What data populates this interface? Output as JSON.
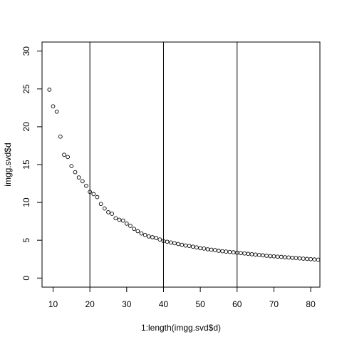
{
  "chart_data": {
    "type": "scatter",
    "title": "",
    "xlabel": "1:length(imgg.svd$d)",
    "ylabel": "imgg.svd$d",
    "xlim": [
      7,
      82.5
    ],
    "ylim": [
      -1.2,
      31.2
    ],
    "grid": false,
    "legend": "none",
    "x_ticks": [
      10,
      20,
      30,
      40,
      50,
      60,
      70,
      80
    ],
    "y_ticks": [
      0,
      5,
      10,
      15,
      20,
      25,
      30
    ],
    "x_tick_labels": [
      "10",
      "20",
      "30",
      "40",
      "50",
      "60",
      "70",
      "80"
    ],
    "y_tick_labels": [
      "0",
      "5",
      "10",
      "15",
      "20",
      "25",
      "30"
    ],
    "vlines": [
      20,
      40,
      60
    ],
    "colors": {
      "points": "#000000",
      "axes": "#000000",
      "lines": "#000000",
      "background": "#ffffff"
    },
    "points": [
      {
        "x": 9,
        "y": 24.9
      },
      {
        "x": 10,
        "y": 22.7
      },
      {
        "x": 11,
        "y": 22.0
      },
      {
        "x": 12,
        "y": 18.7
      },
      {
        "x": 13,
        "y": 16.3
      },
      {
        "x": 14,
        "y": 16.0
      },
      {
        "x": 15,
        "y": 14.8
      },
      {
        "x": 16,
        "y": 14.0
      },
      {
        "x": 17,
        "y": 13.3
      },
      {
        "x": 18,
        "y": 12.8
      },
      {
        "x": 19,
        "y": 12.2
      },
      {
        "x": 20,
        "y": 11.4
      },
      {
        "x": 21,
        "y": 11.1
      },
      {
        "x": 22,
        "y": 10.7
      },
      {
        "x": 23,
        "y": 9.8
      },
      {
        "x": 24,
        "y": 9.2
      },
      {
        "x": 25,
        "y": 8.7
      },
      {
        "x": 26,
        "y": 8.5
      },
      {
        "x": 27,
        "y": 7.9
      },
      {
        "x": 28,
        "y": 7.7
      },
      {
        "x": 29,
        "y": 7.6
      },
      {
        "x": 30,
        "y": 7.2
      },
      {
        "x": 31,
        "y": 6.9
      },
      {
        "x": 32,
        "y": 6.5
      },
      {
        "x": 33,
        "y": 6.2
      },
      {
        "x": 34,
        "y": 5.9
      },
      {
        "x": 35,
        "y": 5.7
      },
      {
        "x": 36,
        "y": 5.5
      },
      {
        "x": 37,
        "y": 5.4
      },
      {
        "x": 38,
        "y": 5.3
      },
      {
        "x": 39,
        "y": 5.1
      },
      {
        "x": 40,
        "y": 4.9
      },
      {
        "x": 41,
        "y": 4.8
      },
      {
        "x": 42,
        "y": 4.7
      },
      {
        "x": 43,
        "y": 4.6
      },
      {
        "x": 44,
        "y": 4.5
      },
      {
        "x": 45,
        "y": 4.4
      },
      {
        "x": 46,
        "y": 4.3
      },
      {
        "x": 47,
        "y": 4.25
      },
      {
        "x": 48,
        "y": 4.15
      },
      {
        "x": 49,
        "y": 4.05
      },
      {
        "x": 50,
        "y": 3.95
      },
      {
        "x": 51,
        "y": 3.9
      },
      {
        "x": 52,
        "y": 3.8
      },
      {
        "x": 53,
        "y": 3.75
      },
      {
        "x": 54,
        "y": 3.7
      },
      {
        "x": 55,
        "y": 3.6
      },
      {
        "x": 56,
        "y": 3.55
      },
      {
        "x": 57,
        "y": 3.5
      },
      {
        "x": 58,
        "y": 3.45
      },
      {
        "x": 59,
        "y": 3.4
      },
      {
        "x": 60,
        "y": 3.35
      },
      {
        "x": 61,
        "y": 3.3
      },
      {
        "x": 62,
        "y": 3.25
      },
      {
        "x": 63,
        "y": 3.2
      },
      {
        "x": 64,
        "y": 3.15
      },
      {
        "x": 65,
        "y": 3.1
      },
      {
        "x": 66,
        "y": 3.05
      },
      {
        "x": 67,
        "y": 3.0
      },
      {
        "x": 68,
        "y": 2.95
      },
      {
        "x": 69,
        "y": 2.9
      },
      {
        "x": 70,
        "y": 2.87
      },
      {
        "x": 71,
        "y": 2.83
      },
      {
        "x": 72,
        "y": 2.8
      },
      {
        "x": 73,
        "y": 2.75
      },
      {
        "x": 74,
        "y": 2.72
      },
      {
        "x": 75,
        "y": 2.68
      },
      {
        "x": 76,
        "y": 2.65
      },
      {
        "x": 77,
        "y": 2.6
      },
      {
        "x": 78,
        "y": 2.57
      },
      {
        "x": 79,
        "y": 2.53
      },
      {
        "x": 80,
        "y": 2.5
      },
      {
        "x": 81,
        "y": 2.46
      },
      {
        "x": 82,
        "y": 2.43
      }
    ]
  }
}
